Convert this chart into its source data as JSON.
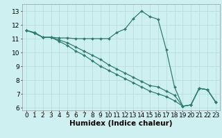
{
  "xlabel": "Humidex (Indice chaleur)",
  "background_color": "#cff0f0",
  "grid_color": "#b8dede",
  "line_color": "#2e7d6e",
  "x_values": [
    0,
    1,
    2,
    3,
    4,
    5,
    6,
    7,
    8,
    9,
    10,
    11,
    12,
    13,
    14,
    15,
    16,
    17,
    18,
    19,
    20,
    21,
    22,
    23
  ],
  "series1": [
    11.6,
    11.45,
    11.1,
    11.1,
    11.05,
    11.05,
    11.0,
    11.0,
    11.0,
    11.0,
    11.0,
    11.45,
    11.7,
    12.45,
    13.0,
    12.6,
    12.4,
    10.2,
    7.5,
    6.1,
    6.2,
    7.4,
    7.3,
    6.4
  ],
  "series2": [
    11.6,
    11.4,
    11.1,
    11.1,
    10.9,
    10.7,
    10.4,
    10.1,
    9.8,
    9.5,
    9.1,
    8.8,
    8.5,
    8.2,
    7.9,
    7.6,
    7.5,
    7.2,
    6.9,
    6.1,
    6.2,
    7.4,
    7.3,
    6.4
  ],
  "series3": [
    11.6,
    11.4,
    11.1,
    11.1,
    10.8,
    10.5,
    10.1,
    9.8,
    9.4,
    9.0,
    8.7,
    8.4,
    8.1,
    7.8,
    7.5,
    7.2,
    7.0,
    6.8,
    6.5,
    6.1,
    6.2,
    7.4,
    7.3,
    6.4
  ],
  "ylim": [
    5.8,
    13.5
  ],
  "xlim": [
    -0.5,
    23.5
  ],
  "yticks": [
    6,
    7,
    8,
    9,
    10,
    11,
    12,
    13
  ],
  "xticks": [
    0,
    1,
    2,
    3,
    4,
    5,
    6,
    7,
    8,
    9,
    10,
    11,
    12,
    13,
    14,
    15,
    16,
    17,
    18,
    19,
    20,
    21,
    22,
    23
  ],
  "tick_fontsize": 6.5,
  "xlabel_fontsize": 7.5
}
